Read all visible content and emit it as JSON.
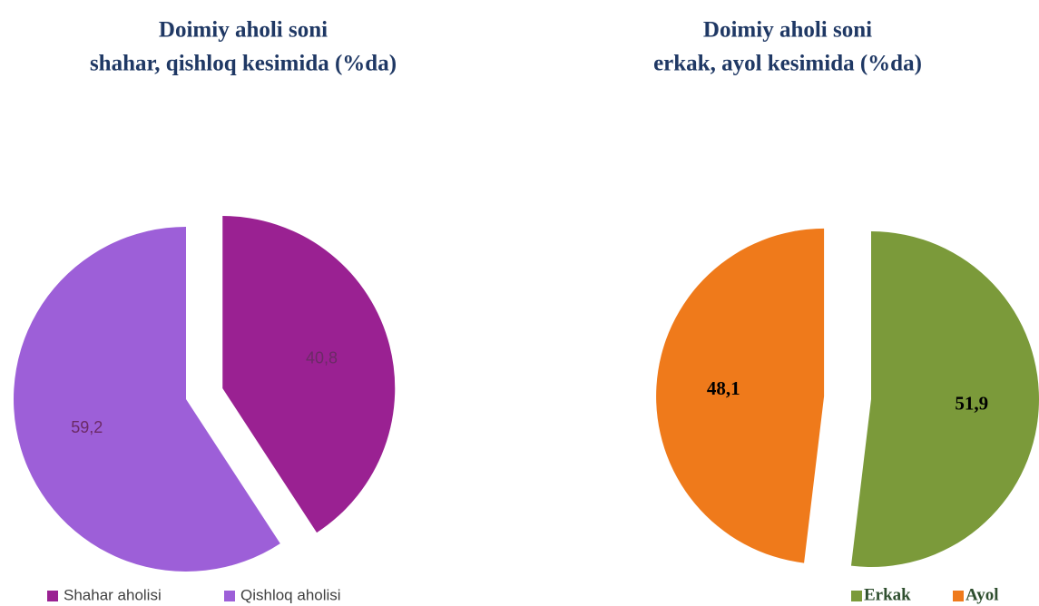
{
  "chart_data": [
    {
      "type": "pie",
      "title": [
        "Doimiy aholi soni",
        "shahar, qishloq kesimida (%da)"
      ],
      "categories": [
        "Shahar aholisi",
        "Qishloq aholisi"
      ],
      "values": [
        40.8,
        59.2
      ],
      "value_labels": [
        "40,8",
        "59,2"
      ],
      "colors": [
        "#9a2192",
        "#9d5fd8"
      ]
    },
    {
      "type": "pie",
      "title": [
        "Doimiy aholi soni",
        "erkak, ayol kesimida (%da)"
      ],
      "categories": [
        "Erkak",
        "Ayol"
      ],
      "values": [
        51.9,
        48.1
      ],
      "value_labels": [
        "51,9",
        "48,1"
      ],
      "colors": [
        "#7b9a3a",
        "#ef7a1b"
      ]
    }
  ]
}
